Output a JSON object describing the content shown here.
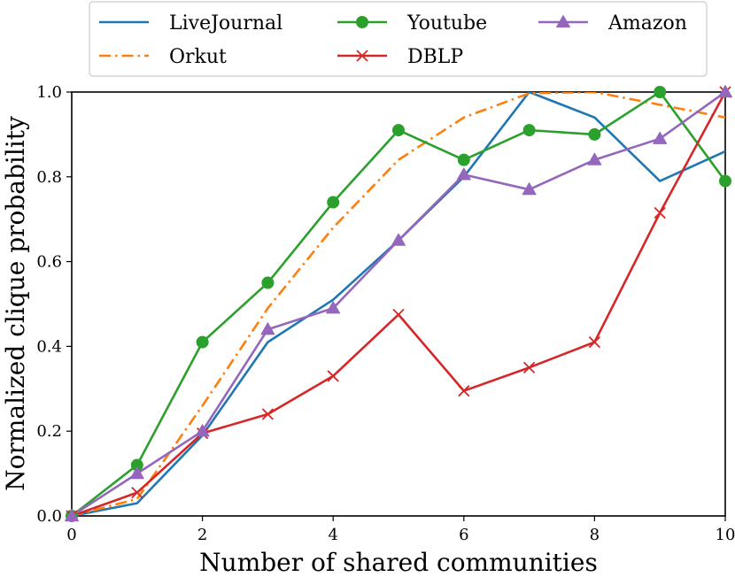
{
  "chart_data": {
    "type": "line",
    "xlabel": "Number of shared communities",
    "ylabel": "Normalized clique probability",
    "xlim": [
      0,
      10
    ],
    "ylim": [
      0,
      1.0
    ],
    "xticks": [
      "0",
      "2",
      "4",
      "6",
      "8",
      "10"
    ],
    "yticks": [
      "0.0",
      "0.2",
      "0.4",
      "0.6",
      "0.8",
      "1.0"
    ],
    "grid": false,
    "legend_position": "top-center, outside",
    "x": [
      0,
      1,
      2,
      3,
      4,
      5,
      6,
      7,
      8,
      9,
      10
    ],
    "series": [
      {
        "name": "LiveJournal",
        "color": "#1f77b4",
        "linestyle": "solid",
        "marker": "none",
        "values": [
          0.0,
          0.03,
          0.19,
          0.41,
          0.51,
          0.65,
          0.8,
          1.0,
          0.94,
          0.79,
          0.86
        ]
      },
      {
        "name": "Orkut",
        "color": "#ff7f0e",
        "linestyle": "dashdot",
        "marker": "none",
        "values": [
          0.0,
          0.04,
          0.26,
          0.49,
          0.68,
          0.84,
          0.94,
          0.997,
          1.0,
          0.97,
          0.94
        ]
      },
      {
        "name": "Youtube",
        "color": "#2ca02c",
        "linestyle": "solid",
        "marker": "circle",
        "values": [
          0.0,
          0.12,
          0.41,
          0.55,
          0.74,
          0.91,
          0.84,
          0.91,
          0.9,
          1.0,
          0.79
        ]
      },
      {
        "name": "DBLP",
        "color": "#d62728",
        "linestyle": "solid",
        "marker": "x",
        "values": [
          0.0,
          0.055,
          0.195,
          0.24,
          0.33,
          0.475,
          0.295,
          0.35,
          0.41,
          0.715,
          1.0
        ]
      },
      {
        "name": "Amazon",
        "color": "#9467bd",
        "linestyle": "solid",
        "marker": "triangle",
        "values": [
          0.0,
          0.1,
          0.2,
          0.44,
          0.49,
          0.65,
          0.805,
          0.77,
          0.84,
          0.89,
          1.0
        ]
      }
    ]
  }
}
